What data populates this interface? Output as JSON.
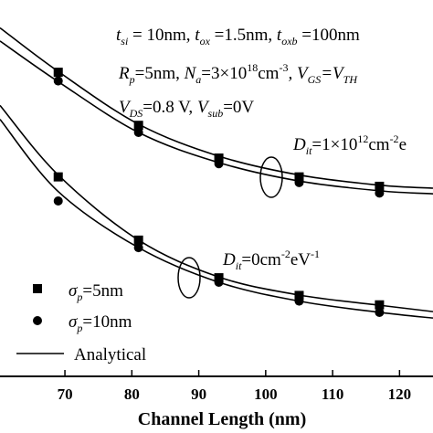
{
  "chart_data": {
    "type": "scatter",
    "xlabel": "Channel Length (nm)",
    "xlim": [
      60.3,
      125
    ],
    "xticks": [
      70,
      80,
      90,
      100,
      110,
      120
    ],
    "ylim": [
      0,
      1
    ],
    "series": [
      {
        "name": "σp=5nm",
        "marker": "square",
        "group": "Dit=1e12",
        "x": [
          69,
          81,
          93,
          105,
          117
        ],
        "y": [
          0.808,
          0.667,
          0.58,
          0.53,
          0.505
        ]
      },
      {
        "name": "σp=10nm",
        "marker": "circle",
        "group": "Dit=1e12",
        "x": [
          69,
          81,
          93,
          105,
          117
        ],
        "y": [
          0.785,
          0.648,
          0.565,
          0.515,
          0.487
        ]
      },
      {
        "name": "σp=5nm",
        "marker": "square",
        "group": "Dit=0",
        "x": [
          69,
          81,
          93,
          105,
          117
        ],
        "y": [
          0.53,
          0.362,
          0.262,
          0.215,
          0.19
        ]
      },
      {
        "name": "σp=10nm",
        "marker": "circle",
        "group": "Dit=0",
        "x": [
          69,
          81,
          93,
          105,
          117
        ],
        "y": [
          0.466,
          0.342,
          0.25,
          0.2,
          0.17
        ]
      }
    ],
    "analytical_curves": [
      {
        "name": "Analytical",
        "x": [
          60.3,
          69,
          81,
          93,
          105,
          117,
          125
        ],
        "y": [
          0.926,
          0.81,
          0.67,
          0.585,
          0.535,
          0.508,
          0.5
        ]
      },
      {
        "name": "Analytical",
        "x": [
          60.3,
          69,
          81,
          93,
          105,
          117,
          125
        ],
        "y": [
          0.891,
          0.783,
          0.648,
          0.568,
          0.519,
          0.493,
          0.485
        ]
      },
      {
        "name": "Analytical",
        "x": [
          60.3,
          69,
          81,
          93,
          105,
          117,
          125
        ],
        "y": [
          0.72,
          0.535,
          0.362,
          0.264,
          0.216,
          0.189,
          0.172
        ]
      },
      {
        "name": "Analytical",
        "x": [
          60.3,
          69,
          81,
          93,
          105,
          117,
          125
        ],
        "y": [
          0.683,
          0.491,
          0.342,
          0.25,
          0.2,
          0.17,
          0.155
        ]
      }
    ],
    "legend": {
      "placement": "bottom-left",
      "entries": [
        {
          "marker": "square",
          "label_main": "σ",
          "label_sub": "p",
          "label_rest": "=5nm"
        },
        {
          "marker": "circle",
          "label_main": "σ",
          "label_sub": "p",
          "label_rest": "=10nm"
        },
        {
          "marker": "line",
          "label": "Analytical"
        }
      ]
    },
    "params": {
      "line1": {
        "t1": "t",
        "t1s": "si",
        "t1v": " = 10nm, ",
        "t2": "t",
        "t2s": "ox",
        "t2v": " =1.5nm, ",
        "t3": "t",
        "t3s": "oxb",
        "t3v": " =100nm"
      },
      "line2": {
        "a": "R",
        "as": "p",
        "av": "=5nm, ",
        "b": "N",
        "bs": "a",
        "bv": "=3×10",
        "bexp": "18",
        "bu": "cm",
        "buexp": "-3",
        "c": ", V",
        "cs": "GS",
        "cv": "=V",
        "cvs": "TH"
      },
      "line3": {
        "a": "V",
        "as": "DS",
        "av": "=0.8 V, ",
        "b": "V",
        "bs": "sub",
        "bv": "=0V"
      }
    },
    "annotations": {
      "dit_high": {
        "main": "D",
        "sub": "it",
        "val": "=1×10",
        "exp": "12",
        "unit": "cm",
        "unitexp": "-2",
        "tail": "e"
      },
      "dit_zero": {
        "main": "D",
        "sub": "it",
        "val": "=0cm",
        "exp": "-2",
        "unit": "eV",
        "unitexp": "-1"
      }
    },
    "grid": false
  }
}
